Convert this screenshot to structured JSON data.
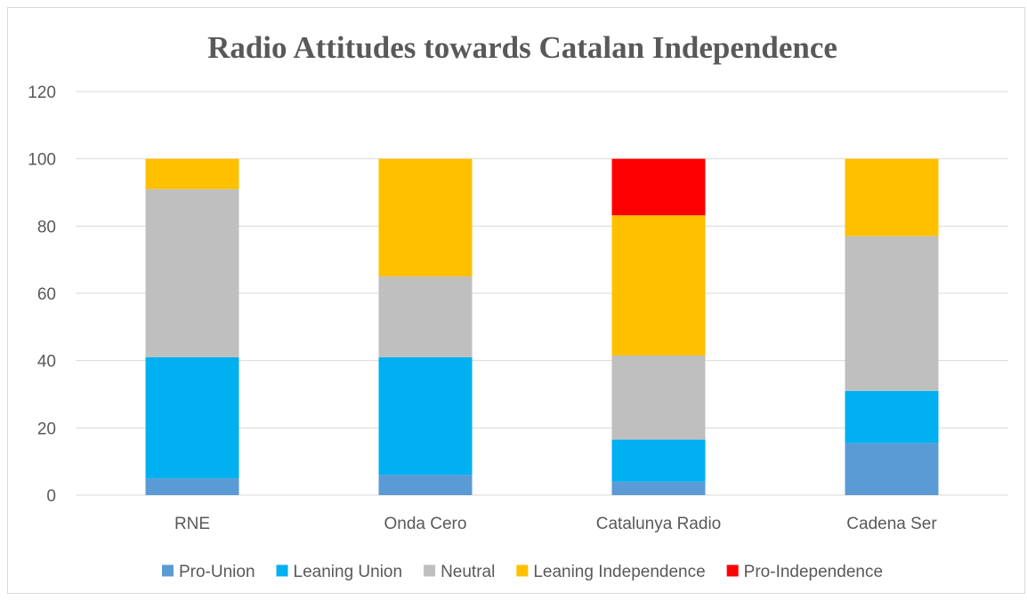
{
  "chart_data": {
    "type": "bar",
    "stacked": true,
    "title": "Radio Attitudes towards Catalan Independence",
    "xlabel": "",
    "ylabel": "",
    "categories": [
      "RNE",
      "Onda Cero",
      "Catalunya Radio",
      "Cadena Ser"
    ],
    "ylim": [
      0,
      120
    ],
    "yticks": [
      0,
      20,
      40,
      60,
      80,
      100,
      120
    ],
    "grid": true,
    "legend_position": "bottom",
    "series": [
      {
        "name": "Pro-Union",
        "color": "#5b9bd5",
        "values": [
          5,
          6,
          4,
          15.5
        ]
      },
      {
        "name": "Leaning Union",
        "color": "#00b0f0",
        "values": [
          36,
          35,
          12.5,
          15.5
        ]
      },
      {
        "name": "Neutral",
        "color": "#bfbfbf",
        "values": [
          50,
          24,
          25,
          46
        ]
      },
      {
        "name": "Leaning Independence",
        "color": "#ffc000",
        "values": [
          9,
          35,
          41.7,
          23
        ]
      },
      {
        "name": "Pro-Independence",
        "color": "#ff0000",
        "values": [
          0,
          0,
          16.8,
          0
        ]
      }
    ]
  }
}
